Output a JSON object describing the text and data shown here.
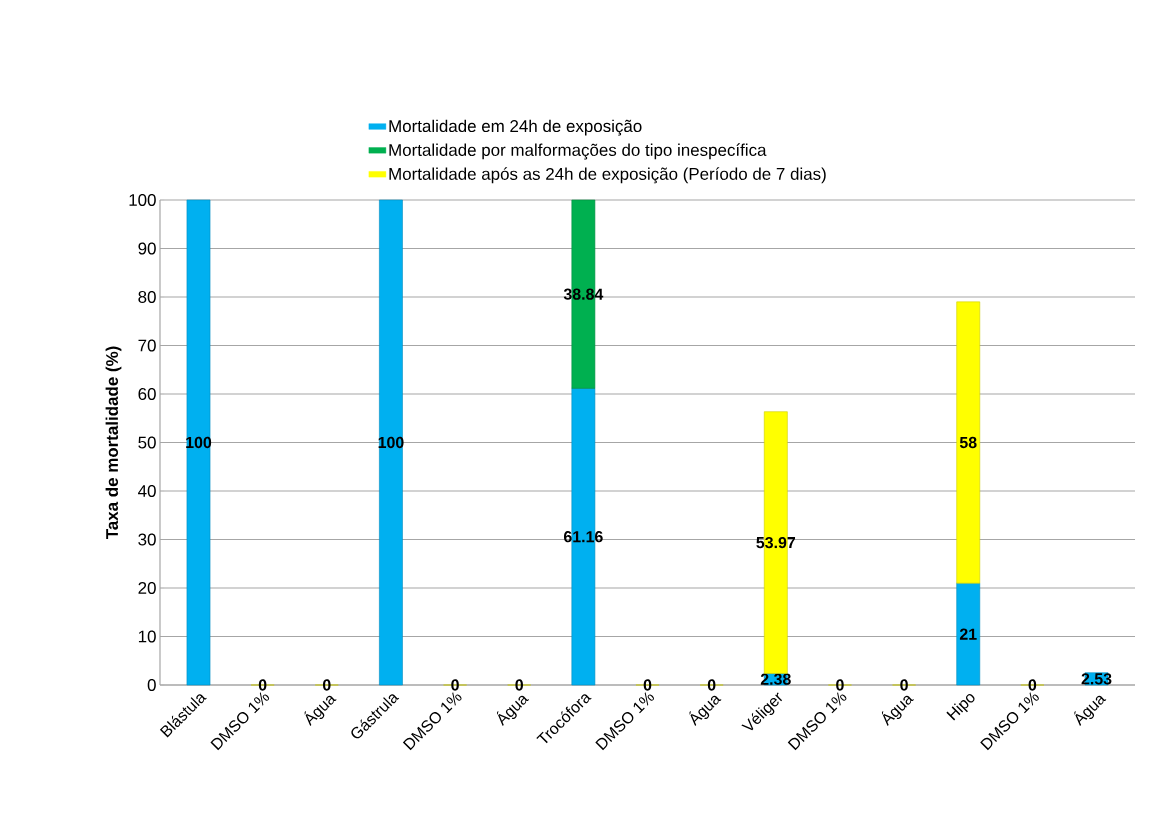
{
  "chart_data": {
    "type": "bar",
    "stacked": true,
    "ylabel": "Taxa de mortalidade (%)",
    "categories": [
      "Blástula",
      "DMSO 1%",
      "Água",
      "Gástrula",
      "DMSO 1%",
      "Água",
      "Trocófora",
      "DMSO 1%",
      "Água",
      "Véliger",
      "DMSO 1%",
      "Água",
      "Hipo",
      "DMSO 1%",
      "Água"
    ],
    "series": [
      {
        "name": "Mortalidade em 24h de exposição",
        "color": "#00b0f0",
        "values": [
          100,
          null,
          null,
          100,
          null,
          null,
          61.16,
          null,
          null,
          2.38,
          null,
          null,
          21,
          null,
          2.53
        ]
      },
      {
        "name": "Mortalidade por malformações do tipo inespecífica",
        "color": "#00b050",
        "values": [
          null,
          null,
          null,
          null,
          null,
          null,
          38.84,
          null,
          null,
          null,
          null,
          null,
          null,
          null,
          null
        ]
      },
      {
        "name": "Mortalidade após as 24h de exposição (Período de 7 dias)",
        "color": "#ffff00",
        "values": [
          null,
          0,
          0,
          null,
          0,
          0,
          null,
          0,
          0,
          53.97,
          0,
          0,
          58,
          0,
          null
        ]
      }
    ],
    "ylim": [
      0,
      100
    ],
    "yticks": [
      0,
      10,
      20,
      30,
      40,
      50,
      60,
      70,
      80,
      90,
      100
    ],
    "grid": "y",
    "legend": "top",
    "data_labels": true
  }
}
